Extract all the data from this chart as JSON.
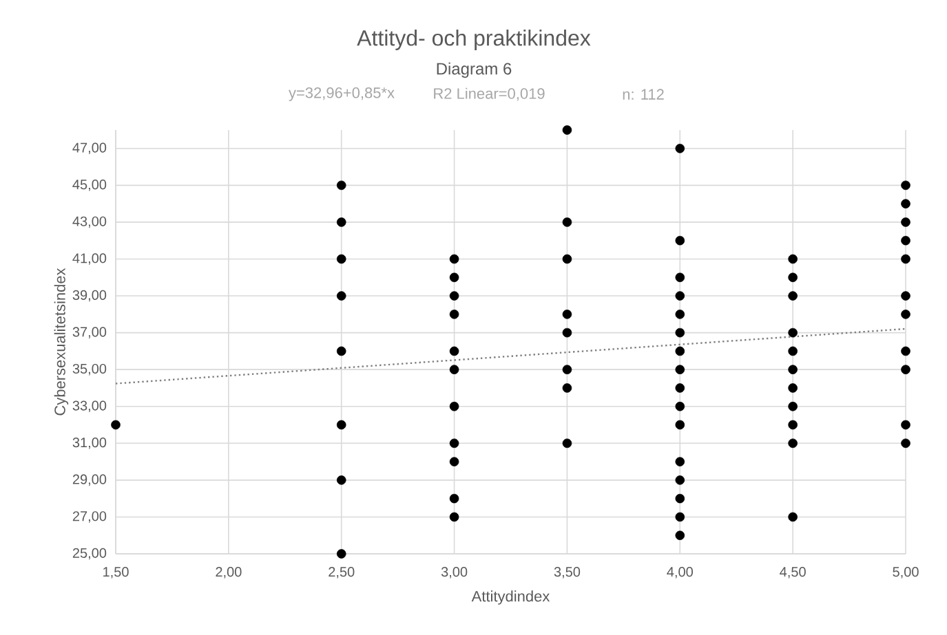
{
  "chart_data": {
    "type": "scatter",
    "title": "Attityd- och praktikindex",
    "subtitle": "Diagram 6",
    "xlabel": "Attitydindex",
    "ylabel": "Cybersexualitetsindex",
    "annotations": [
      "y=32,96+0,85*x",
      "R2 Linear=0,019",
      "n: 112"
    ],
    "series": [
      {
        "color": "#000000",
        "marker": "circle",
        "x": [
          1.5,
          2.5,
          2.5,
          2.5,
          2.5,
          2.5,
          2.5,
          2.5,
          2.5,
          3.0,
          3.0,
          3.0,
          3.0,
          3.0,
          3.0,
          3.0,
          3.0,
          3.0,
          3.0,
          3.0,
          3.5,
          3.5,
          3.5,
          3.5,
          3.5,
          3.5,
          3.5,
          3.5,
          4.0,
          4.0,
          4.0,
          4.0,
          4.0,
          4.0,
          4.0,
          4.0,
          4.0,
          4.0,
          4.0,
          4.0,
          4.0,
          4.0,
          4.0,
          4.0,
          4.5,
          4.5,
          4.5,
          4.5,
          4.5,
          4.5,
          4.5,
          4.5,
          4.5,
          4.5,
          4.5,
          5.0,
          5.0,
          5.0,
          5.0,
          5.0,
          5.0,
          5.0,
          5.0,
          5.0,
          5.0,
          5.0
        ],
        "values": [
          32,
          45,
          43,
          41,
          39,
          36,
          32,
          29,
          25,
          41,
          40,
          39,
          38,
          36,
          35,
          33,
          31,
          30,
          28,
          27,
          48,
          43,
          41,
          38,
          37,
          35,
          34,
          31,
          47,
          42,
          40,
          39,
          38,
          37,
          36,
          35,
          34,
          33,
          32,
          30,
          29,
          28,
          27,
          26,
          41,
          40,
          39,
          37,
          36,
          35,
          34,
          33,
          32,
          31,
          27,
          45,
          44,
          43,
          42,
          41,
          39,
          38,
          36,
          35,
          32,
          31
        ]
      },
      {
        "type": "line",
        "color": "#7f7f7f",
        "line_style": "dotted",
        "marker": "none",
        "x": [
          1.5,
          5.0
        ],
        "values": [
          34.24,
          37.21
        ]
      }
    ],
    "xlim": [
      1.5,
      5.0
    ],
    "ylim": [
      25,
      48
    ],
    "xticks": [
      {
        "value": 1.5,
        "label": "1,50"
      },
      {
        "value": 2.0,
        "label": "2,00"
      },
      {
        "value": 2.5,
        "label": "2,50"
      },
      {
        "value": 3.0,
        "label": "3,00"
      },
      {
        "value": 3.5,
        "label": "3,50"
      },
      {
        "value": 4.0,
        "label": "4,00"
      },
      {
        "value": 4.5,
        "label": "4,50"
      },
      {
        "value": 5.0,
        "label": "5,00"
      }
    ],
    "yticks": [
      {
        "value": 25,
        "label": "25,00"
      },
      {
        "value": 27,
        "label": "27,00"
      },
      {
        "value": 29,
        "label": "29,00"
      },
      {
        "value": 31,
        "label": "31,00"
      },
      {
        "value": 33,
        "label": "33,00"
      },
      {
        "value": 35,
        "label": "35,00"
      },
      {
        "value": 37,
        "label": "37,00"
      },
      {
        "value": 39,
        "label": "39,00"
      },
      {
        "value": 41,
        "label": "41,00"
      },
      {
        "value": 43,
        "label": "43,00"
      },
      {
        "value": 45,
        "label": "45,00"
      },
      {
        "value": 47,
        "label": "47,00"
      }
    ],
    "grid": true
  }
}
